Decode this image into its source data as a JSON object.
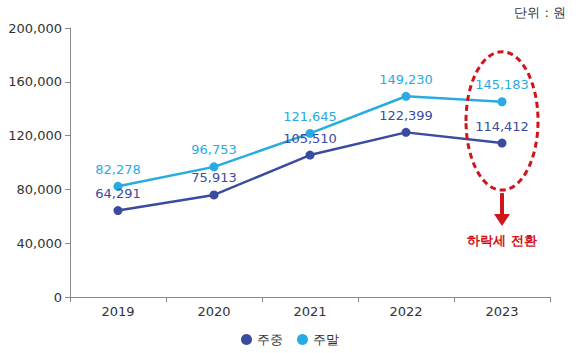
{
  "chart_data": {
    "type": "line",
    "unit_label": "단위 : 원",
    "annotations": [
      "하락세 전환"
    ],
    "categories": [
      "2019",
      "2020",
      "2021",
      "2022",
      "2023"
    ],
    "series": [
      {
        "name": "주중",
        "color": "#3b4ba0",
        "marker": "circle",
        "values": [
          64291,
          75913,
          105510,
          122399,
          114412
        ],
        "value_labels": [
          "64,291",
          "75,913",
          "105,510",
          "122,399",
          "114,412"
        ]
      },
      {
        "name": "주말",
        "color": "#29abe2",
        "marker": "circle",
        "values": [
          82278,
          96753,
          121645,
          149230,
          145183
        ],
        "value_labels": [
          "82,278",
          "96,753",
          "121,645",
          "149,230",
          "145,183"
        ]
      }
    ],
    "ylim": [
      0,
      200000
    ],
    "yticks": [
      0,
      {
        "value": 40000,
        "label": "40,000"
      },
      {
        "value": 80000,
        "label": "80,000"
      },
      {
        "value": 120000,
        "label": "120,000"
      },
      {
        "value": 160000,
        "label": "160,000"
      },
      {
        "value": 200000,
        "label": "200,000"
      }
    ],
    "grid": false,
    "legend": "bottom",
    "data_labels": true
  }
}
